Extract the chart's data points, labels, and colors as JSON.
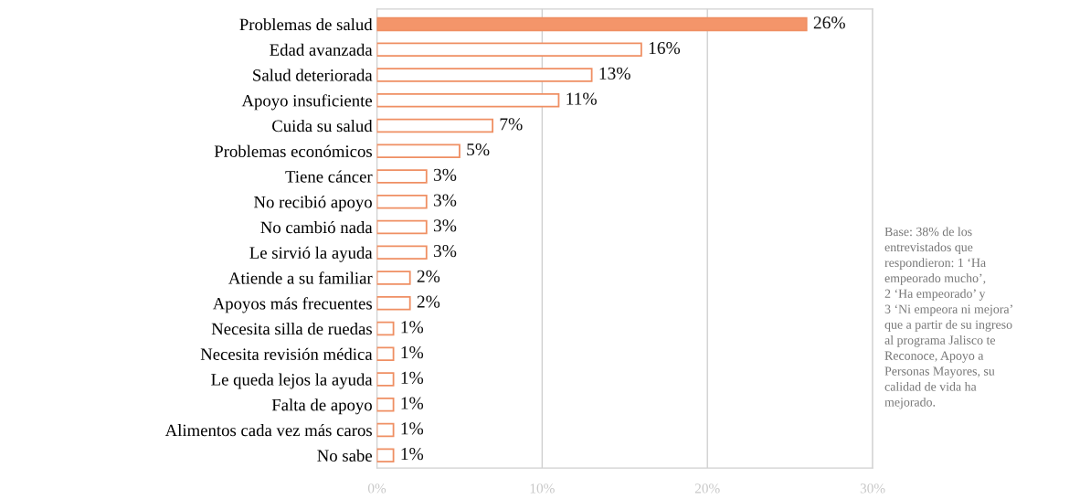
{
  "chart_data": {
    "type": "bar",
    "orientation": "horizontal",
    "categories": [
      "Problemas de salud",
      "Edad avanzada",
      "Salud deteriorada",
      "Apoyo insuficiente",
      "Cuida su salud",
      "Problemas económicos",
      "Tiene cáncer",
      "No recibió apoyo",
      "No cambió nada",
      "Le sirvió la ayuda",
      "Atiende a su familiar",
      "Apoyos más frecuentes",
      "Necesita silla de ruedas",
      "Necesita revisión médica",
      "Le queda lejos la ayuda",
      "Falta de apoyo",
      "Alimentos cada vez más caros",
      "No sabe"
    ],
    "values": [
      26,
      16,
      13,
      11,
      7,
      5,
      3,
      3,
      3,
      3,
      2,
      2,
      1,
      1,
      1,
      1,
      1,
      1
    ],
    "value_labels": [
      "26%",
      "16%",
      "13%",
      "11%",
      "7%",
      "5%",
      "3%",
      "3%",
      "3%",
      "3%",
      "2%",
      "2%",
      "1%",
      "1%",
      "1%",
      "1%",
      "1%",
      "1%"
    ],
    "color": "#ef8f63",
    "colors": [
      "#f4956a",
      "#ffffff",
      "#ffffff",
      "#ffffff",
      "#ffffff",
      "#ffffff",
      "#ffffff",
      "#ffffff",
      "#ffffff",
      "#ffffff",
      "#ffffff",
      "#ffffff",
      "#ffffff",
      "#ffffff",
      "#ffffff",
      "#ffffff",
      "#ffffff",
      "#ffffff"
    ],
    "xlim": [
      0,
      30
    ],
    "xticks": [
      {
        "value": 0,
        "label": "0%"
      },
      {
        "value": 10,
        "label": "10%"
      },
      {
        "value": 20,
        "label": "20%"
      },
      {
        "value": 30,
        "label": "30%"
      }
    ],
    "grid": "x",
    "annotations": [
      "Base: 38% de los\nentrevistados que\nrespondieron: 1 ‘Ha\nempeorado mucho’,\n2 ‘Ha empeorado’ y\n3 ‘Ni empeora ni mejora’\nque a partir de su ingreso\nal programa Jalisco te\nReconoce, Apoyo a\nPersonas Mayores, su\ncalidad de vida ha\nmejorado."
    ]
  }
}
